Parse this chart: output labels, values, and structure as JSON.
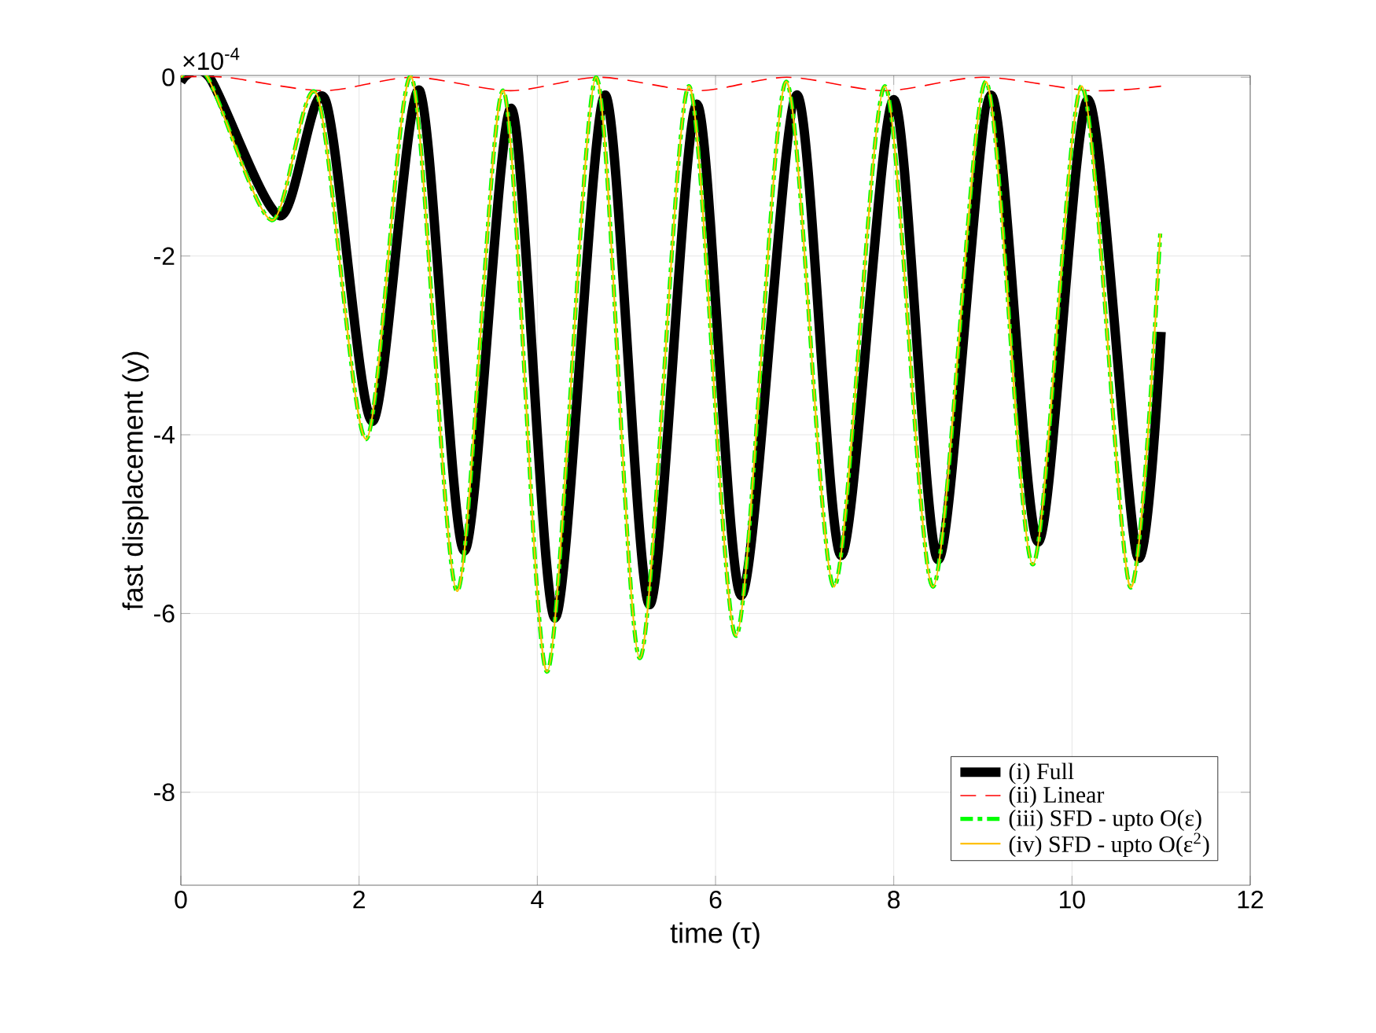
{
  "chart_data": {
    "type": "line",
    "xlabel": "time (τ)",
    "ylabel": "fast displacement (y)",
    "annotations": [
      "×10$^{-4}$"
    ],
    "xlim": [
      0,
      12
    ],
    "xticks": [
      0,
      2,
      4,
      6,
      8,
      10,
      12
    ],
    "ylim": [
      -9.04,
      0.02
    ],
    "yticks": [
      -8,
      -6,
      -4,
      -2,
      0
    ],
    "grid": true,
    "legend": "bottom right",
    "series": [
      {
        "name": "(i) Full",
        "color": "#000000",
        "line_style": "solid",
        "x": [
          0,
          0.32,
          1.11,
          1.62,
          2.15,
          2.68,
          3.18,
          3.71,
          4.2,
          4.76,
          5.26,
          5.79,
          6.29,
          6.91,
          7.41,
          8.0,
          8.5,
          9.09,
          9.62,
          10.18,
          10.73,
          11.0
        ],
        "values": [
          -0.05,
          0,
          -1.55,
          -0.25,
          -3.85,
          -0.15,
          -5.3,
          -0.35,
          -6.05,
          -0.2,
          -5.9,
          -0.3,
          -5.8,
          -0.2,
          -5.35,
          -0.25,
          -5.4,
          -0.2,
          -5.2,
          -0.25,
          -5.35,
          -2.85
        ]
      },
      {
        "name": "(ii) Linear",
        "color": "#ff0000",
        "line_style": "dashed",
        "x": [
          0,
          0.5,
          1.6,
          2.6,
          3.7,
          4.7,
          5.8,
          6.8,
          7.9,
          9.0,
          10.2,
          11.0
        ],
        "values": [
          0,
          0,
          -0.15,
          0,
          -0.15,
          0,
          -0.15,
          0,
          -0.15,
          0,
          -0.15,
          -0.1
        ]
      },
      {
        "name": "(iii) SFD - upto O(ε)",
        "color": "#00ff00",
        "line_style": "dashdot",
        "x": [
          0,
          0.3,
          1.02,
          1.53,
          2.08,
          2.59,
          3.1,
          3.62,
          4.11,
          4.66,
          5.15,
          5.7,
          6.23,
          6.79,
          7.33,
          7.9,
          8.44,
          9.03,
          9.56,
          10.11,
          10.65,
          10.99
        ],
        "values": [
          0,
          0,
          -1.6,
          -0.2,
          -4.05,
          0,
          -5.75,
          -0.15,
          -6.65,
          0,
          -6.5,
          -0.1,
          -6.25,
          -0.05,
          -5.7,
          -0.1,
          -5.7,
          -0.05,
          -5.45,
          -0.1,
          -5.7,
          -1.75
        ]
      },
      {
        "name": "(iv) SFD - upto O(ε$^{2}$)",
        "color": "#ffc000",
        "line_style": "solid",
        "x": [
          0,
          0.3,
          1.02,
          1.53,
          2.08,
          2.59,
          3.1,
          3.62,
          4.11,
          4.66,
          5.15,
          5.7,
          6.23,
          6.79,
          7.33,
          7.9,
          8.44,
          9.03,
          9.56,
          10.11,
          10.65,
          10.99
        ],
        "values": [
          0,
          0,
          -1.6,
          -0.2,
          -4.05,
          0,
          -5.75,
          -0.15,
          -6.65,
          0,
          -6.5,
          -0.1,
          -6.25,
          -0.05,
          -5.7,
          -0.1,
          -5.7,
          -0.05,
          -5.45,
          -0.1,
          -5.7,
          -1.75
        ]
      }
    ]
  }
}
